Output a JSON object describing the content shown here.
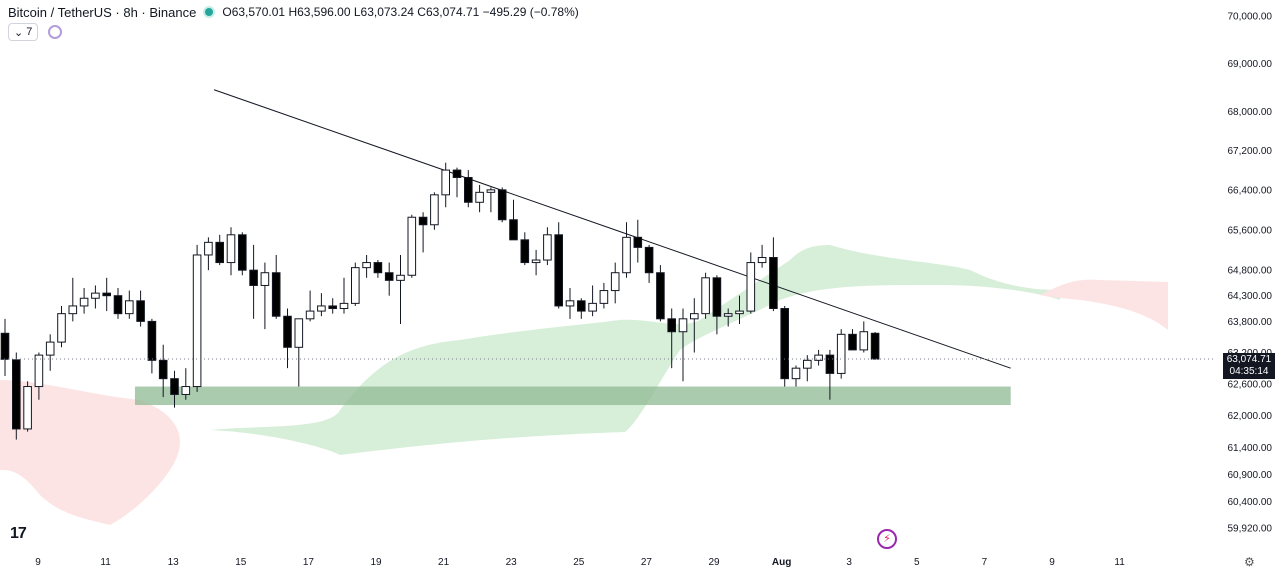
{
  "header": {
    "symbol": "Bitcoin / TetherUS · 8h · Binance",
    "o_label": "O",
    "o": "63,570.01",
    "h_label": "H",
    "h": "63,596.00",
    "l_label": "L",
    "l": "63,073.24",
    "c_label": "C",
    "c": "63,074.71",
    "change": "−495.29 (−0.78%)"
  },
  "toolbar": {
    "indicator_count": "7"
  },
  "price_label": {
    "price": "63,074.71",
    "countdown": "04:35:14"
  },
  "colors": {
    "up": "#ffffff",
    "down": "#000000",
    "wick": "#131722",
    "cloud_bull": "#d7efd9",
    "cloud_bear": "#fde4e4",
    "support_zone": "#8fb993",
    "trendline": "#131722"
  },
  "chart_data": {
    "type": "candlestick",
    "price_scale": "log",
    "ylim": [
      59500,
      70500
    ],
    "y_ticks": [
      "70,000.00",
      "69,000.00",
      "68,000.00",
      "67,200.00",
      "66,400.00",
      "65,600.00",
      "64,800.00",
      "64,300.00",
      "63,800.00",
      "63,200.00",
      "62,600.00",
      "62,000.00",
      "61,400.00",
      "60,900.00",
      "60,400.00",
      "59,920.00"
    ],
    "x_ticks": [
      "9",
      "11",
      "13",
      "15",
      "17",
      "19",
      "21",
      "23",
      "25",
      "27",
      "29",
      "Aug",
      "3",
      "5",
      "7",
      "9",
      "11"
    ],
    "candles": [
      [
        63570,
        63850,
        62750,
        63070
      ],
      [
        63060,
        63200,
        61550,
        61750
      ],
      [
        61750,
        62650,
        61700,
        62550
      ],
      [
        62550,
        63200,
        62300,
        63150
      ],
      [
        63150,
        63550,
        62850,
        63400
      ],
      [
        63400,
        64100,
        63300,
        63950
      ],
      [
        63950,
        64650,
        63800,
        64100
      ],
      [
        64100,
        64450,
        63950,
        64250
      ],
      [
        64250,
        64500,
        64050,
        64350
      ],
      [
        64350,
        64650,
        64000,
        64300
      ],
      [
        64300,
        64450,
        63850,
        63950
      ],
      [
        63950,
        64400,
        63850,
        64200
      ],
      [
        64200,
        64400,
        63700,
        63800
      ],
      [
        63800,
        63850,
        62800,
        63050
      ],
      [
        63050,
        63350,
        62350,
        62700
      ],
      [
        62700,
        62850,
        62150,
        62400
      ],
      [
        62400,
        62900,
        62300,
        62550
      ],
      [
        62550,
        65300,
        62450,
        65100
      ],
      [
        65100,
        65450,
        64800,
        65350
      ],
      [
        65350,
        65500,
        64900,
        64950
      ],
      [
        64950,
        65650,
        64700,
        65500
      ],
      [
        65500,
        65550,
        64700,
        64800
      ],
      [
        64800,
        65300,
        63850,
        64500
      ],
      [
        64500,
        64950,
        63650,
        64750
      ],
      [
        64750,
        65100,
        63850,
        63900
      ],
      [
        63900,
        64050,
        62900,
        63300
      ],
      [
        63300,
        63850,
        62550,
        63850
      ],
      [
        63850,
        64400,
        63800,
        64000
      ],
      [
        64000,
        64350,
        63900,
        64100
      ],
      [
        64100,
        64250,
        63950,
        64050
      ],
      [
        64050,
        64650,
        63950,
        64150
      ],
      [
        64150,
        64950,
        64100,
        64850
      ],
      [
        64850,
        65100,
        64650,
        64950
      ],
      [
        64950,
        65000,
        64650,
        64750
      ],
      [
        64750,
        64950,
        64300,
        64600
      ],
      [
        64600,
        65100,
        63750,
        64700
      ],
      [
        64700,
        65900,
        64650,
        65850
      ],
      [
        65850,
        65950,
        65150,
        65700
      ],
      [
        65700,
        66350,
        65600,
        66300
      ],
      [
        66300,
        66950,
        66050,
        66800
      ],
      [
        66800,
        66850,
        66250,
        66650
      ],
      [
        66650,
        66800,
        66050,
        66150
      ],
      [
        66150,
        66500,
        65950,
        66350
      ],
      [
        66350,
        66450,
        65950,
        66400
      ],
      [
        66400,
        66450,
        65750,
        65800
      ],
      [
        65800,
        66200,
        65400,
        65400
      ],
      [
        65400,
        65550,
        64900,
        64950
      ],
      [
        64950,
        65200,
        64700,
        65000
      ],
      [
        65000,
        65650,
        64900,
        65500
      ],
      [
        65500,
        65750,
        64050,
        64100
      ],
      [
        64100,
        64450,
        63850,
        64200
      ],
      [
        64200,
        64250,
        63850,
        64000
      ],
      [
        64000,
        64500,
        63900,
        64150
      ],
      [
        64150,
        64550,
        64050,
        64400
      ],
      [
        64400,
        64950,
        64150,
        64750
      ],
      [
        64750,
        65750,
        64650,
        65450
      ],
      [
        65450,
        65800,
        64950,
        65250
      ],
      [
        65250,
        65300,
        64550,
        64750
      ],
      [
        64750,
        64900,
        63800,
        63850
      ],
      [
        63850,
        64050,
        62900,
        63600
      ],
      [
        63600,
        64050,
        62650,
        63850
      ],
      [
        63850,
        64250,
        63200,
        63950
      ],
      [
        63950,
        64750,
        63850,
        64650
      ],
      [
        64650,
        64700,
        63550,
        63900
      ],
      [
        63900,
        64050,
        63700,
        63950
      ],
      [
        63950,
        64300,
        63750,
        64000
      ],
      [
        64000,
        65150,
        63950,
        64950
      ],
      [
        64950,
        65300,
        64850,
        65050
      ],
      [
        65050,
        65450,
        64000,
        64050
      ],
      [
        64050,
        64100,
        62550,
        62700
      ],
      [
        62700,
        62950,
        62550,
        62900
      ],
      [
        62900,
        63150,
        62650,
        63050
      ],
      [
        63050,
        63250,
        62950,
        63150
      ],
      [
        63150,
        63250,
        62300,
        62800
      ],
      [
        62800,
        63650,
        62700,
        63550
      ],
      [
        63550,
        63650,
        63250,
        63250
      ],
      [
        63250,
        63800,
        63200,
        63600
      ],
      [
        63570,
        63596,
        63073,
        63074
      ]
    ],
    "trendline": {
      "start": {
        "index": 18.5,
        "price": 68450
      },
      "end": {
        "index": 89,
        "price": 62900
      }
    },
    "support_zone": {
      "from_index": 11.5,
      "to_index": 89,
      "low": 62200,
      "high": 62550
    },
    "current_price": 63074.71
  }
}
